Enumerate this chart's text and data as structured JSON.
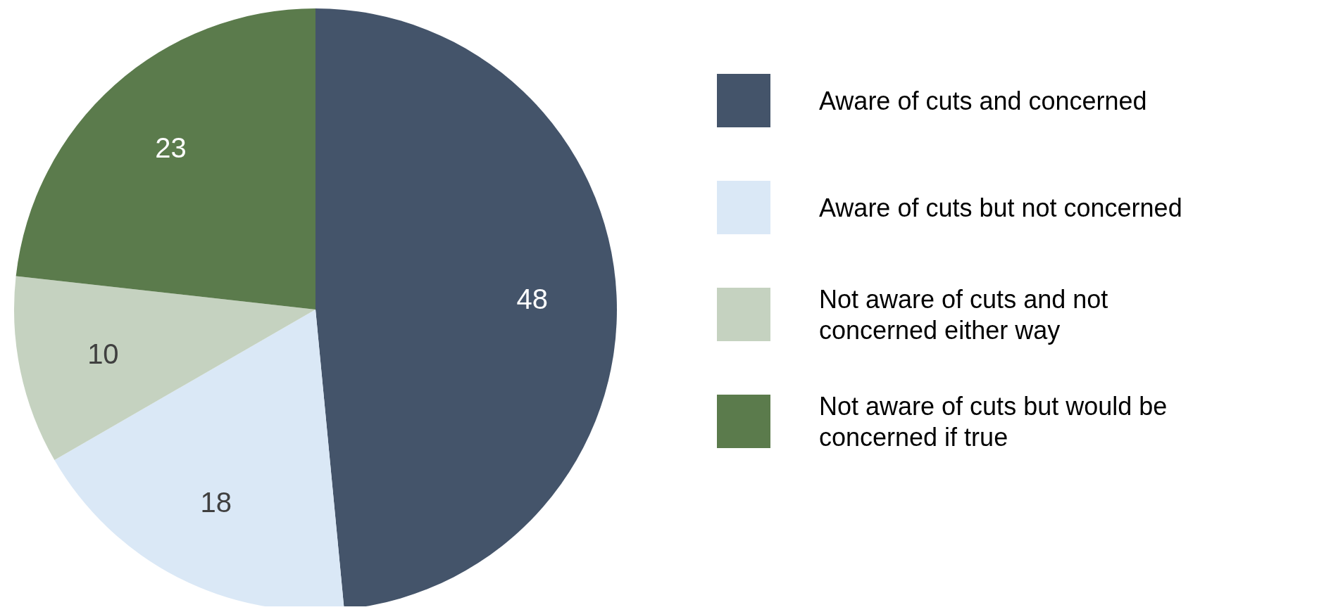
{
  "chart_data": {
    "type": "pie",
    "categories": [
      "Aware of cuts and concerned",
      "Aware of cuts but not concerned",
      "Not aware of cuts and not concerned either way",
      "Not aware of cuts but would be concerned if true"
    ],
    "values": [
      48,
      18,
      10,
      23
    ],
    "colors": [
      "#44546a",
      "#dae8f6",
      "#c5d2c0",
      "#5b7b4c"
    ],
    "data_labels": true,
    "legend": "right"
  }
}
